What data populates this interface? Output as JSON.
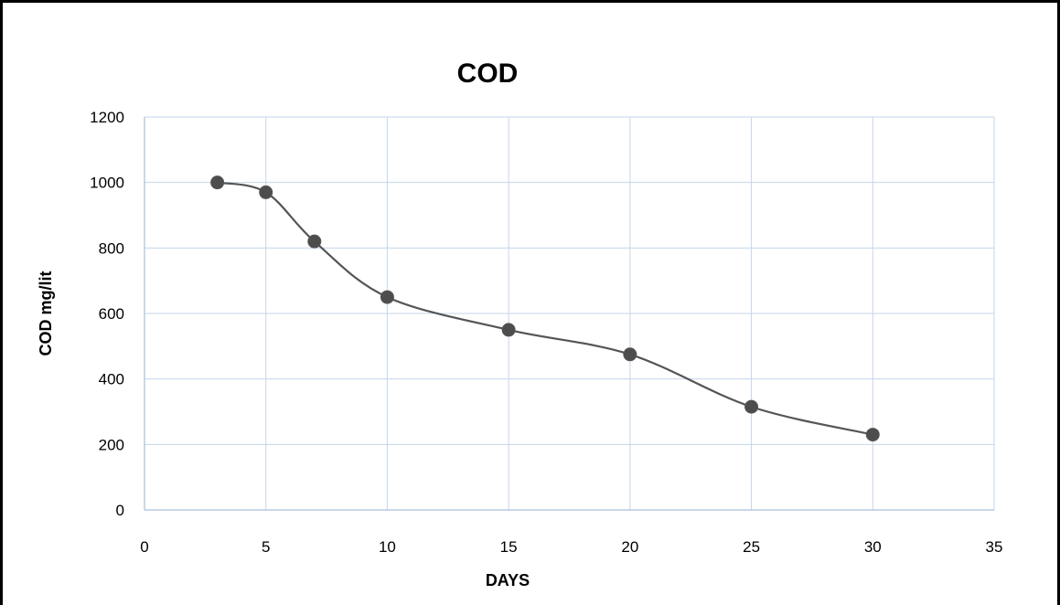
{
  "chart_data": {
    "type": "scatter",
    "title": "COD",
    "xlabel": "DAYS",
    "ylabel": "COD mg/lit",
    "xlim": [
      0,
      35
    ],
    "ylim": [
      0,
      1200
    ],
    "xticks": [
      0,
      5,
      10,
      15,
      20,
      25,
      30,
      35
    ],
    "yticks": [
      0,
      200,
      400,
      600,
      800,
      1000,
      1200
    ],
    "grid": true,
    "smooth_line": true,
    "series": [
      {
        "x": [
          3,
          5,
          7,
          10,
          15,
          20,
          25,
          30
        ],
        "y": [
          1000,
          970,
          820,
          650,
          550,
          475,
          315,
          230
        ]
      }
    ],
    "colors": {
      "line": "#555555",
      "marker": "#4d4d4d",
      "grid": "#c5d6ea"
    }
  }
}
